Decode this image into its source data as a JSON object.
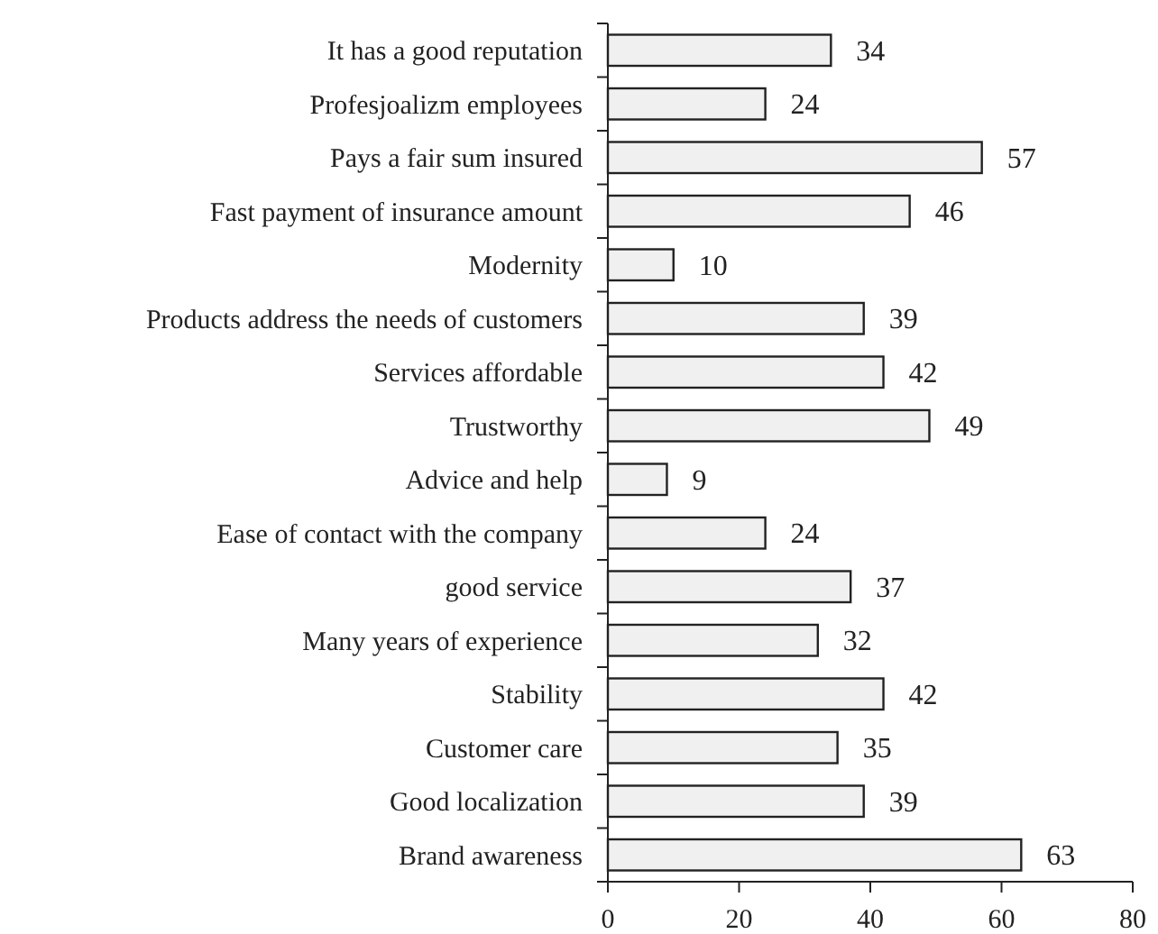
{
  "chart_data": {
    "type": "bar",
    "orientation": "horizontal",
    "categories": [
      "It has a good reputation",
      "Profesjoalizm employees",
      "Pays a fair sum insured",
      "Fast payment of insurance amount",
      "Modernity",
      "Products address the needs of customers",
      "Services affordable",
      "Trustworthy",
      "Advice and help",
      "Ease of contact with the company",
      "good service",
      "Many years of experience",
      "Stability",
      "Customer care",
      "Good localization",
      "Brand awareness"
    ],
    "values": [
      34,
      24,
      57,
      46,
      10,
      39,
      42,
      49,
      9,
      24,
      37,
      32,
      42,
      35,
      39,
      63
    ],
    "color": "#f0f0f0",
    "data_labels": true,
    "xlim": [
      0,
      80
    ],
    "xticks": [
      0,
      20,
      40,
      60,
      80
    ],
    "grid": false
  }
}
